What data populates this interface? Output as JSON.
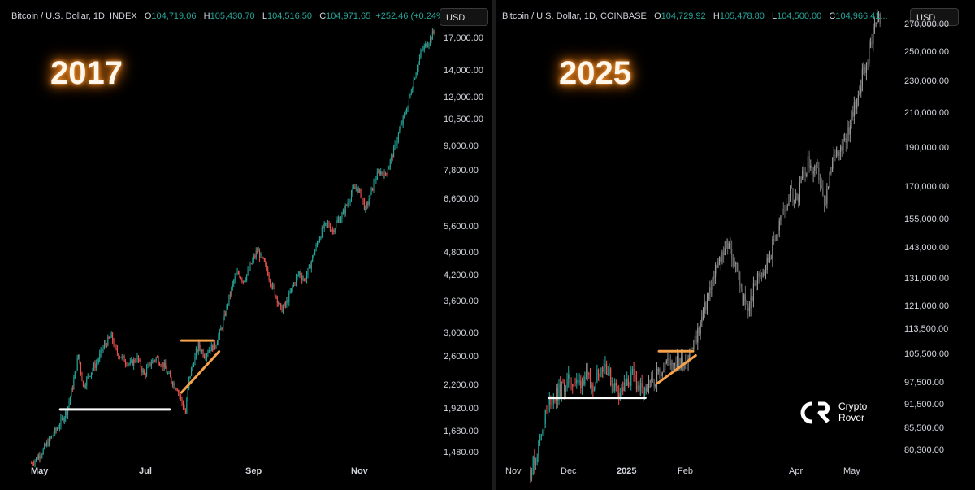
{
  "chart_data": [
    {
      "type": "candlestick",
      "title": "2017",
      "legend": {
        "symbol": "Bitcoin / U.S. Dollar, 1D, INDEX",
        "open": "104,719.06",
        "high": "105,430.70",
        "low": "104,516.50",
        "close": "104,971.65",
        "change": "+252.46 (+0.24%)..."
      },
      "currency_button": "USD",
      "y_scale": "log",
      "ylim": [
        1400,
        18500
      ],
      "y_ticks": [
        "17,000.00",
        "14,000.00",
        "12,000.00",
        "10,500.00",
        "9,000.00",
        "7,800.00",
        "6,600.00",
        "5,600.00",
        "4,800.00",
        "4,200.00",
        "3,600.00",
        "3,000.00",
        "2,600.00",
        "2,200.00",
        "1,920.00",
        "1,680.00",
        "1,480.00"
      ],
      "x_ticks": [
        "May",
        "Jul",
        "Sep",
        "Nov"
      ],
      "x_tick_bold": [
        true,
        true,
        true,
        true
      ],
      "path_points": [
        [
          0,
          1400
        ],
        [
          8,
          1480
        ],
        [
          15,
          1600
        ],
        [
          22,
          1720
        ],
        [
          30,
          1900
        ],
        [
          35,
          2200
        ],
        [
          40,
          2650
        ],
        [
          44,
          2200
        ],
        [
          50,
          2380
        ],
        [
          56,
          2550
        ],
        [
          62,
          2800
        ],
        [
          68,
          2950
        ],
        [
          72,
          2700
        ],
        [
          78,
          2580
        ],
        [
          84,
          2500
        ],
        [
          90,
          2600
        ],
        [
          96,
          2350
        ],
        [
          100,
          2500
        ],
        [
          106,
          2600
        ],
        [
          112,
          2500
        ],
        [
          118,
          2300
        ],
        [
          124,
          2180
        ],
        [
          128,
          2000
        ],
        [
          131,
          1880
        ],
        [
          134,
          2300
        ],
        [
          138,
          2550
        ],
        [
          142,
          2800
        ],
        [
          147,
          2650
        ],
        [
          152,
          2750
        ],
        [
          156,
          2800
        ],
        [
          160,
          3000
        ],
        [
          164,
          3300
        ],
        [
          168,
          3700
        ],
        [
          172,
          4100
        ],
        [
          176,
          4300
        ],
        [
          180,
          4100
        ],
        [
          184,
          4300
        ],
        [
          188,
          4600
        ],
        [
          192,
          4900
        ],
        [
          196,
          4650
        ],
        [
          200,
          4400
        ],
        [
          204,
          4000
        ],
        [
          208,
          3750
        ],
        [
          212,
          3450
        ],
        [
          216,
          3550
        ],
        [
          220,
          3800
        ],
        [
          224,
          4100
        ],
        [
          228,
          4300
        ],
        [
          232,
          4100
        ],
        [
          236,
          4400
        ],
        [
          240,
          4800
        ],
        [
          244,
          5200
        ],
        [
          248,
          5600
        ],
        [
          252,
          5700
        ],
        [
          256,
          5500
        ],
        [
          260,
          5800
        ],
        [
          264,
          6000
        ],
        [
          268,
          6400
        ],
        [
          272,
          6850
        ],
        [
          276,
          7100
        ],
        [
          280,
          6800
        ],
        [
          284,
          6200
        ],
        [
          288,
          6800
        ],
        [
          292,
          7400
        ],
        [
          296,
          7800
        ],
        [
          300,
          7600
        ],
        [
          304,
          8100
        ],
        [
          308,
          8800
        ],
        [
          312,
          9700
        ],
        [
          316,
          10600
        ],
        [
          320,
          11500
        ],
        [
          324,
          13000
        ],
        [
          328,
          14500
        ],
        [
          332,
          15800
        ],
        [
          336,
          16500
        ],
        [
          340,
          17200
        ],
        [
          344,
          18200
        ]
      ],
      "levels": [
        {
          "kind": "support",
          "price": 1920,
          "from": 25,
          "to": 118,
          "color": "#ffffff"
        },
        {
          "kind": "resistance",
          "price": 2880,
          "from": 128,
          "to": 155,
          "color": "#f5a34a"
        },
        {
          "kind": "trendline",
          "from": [
            128,
            2120
          ],
          "to": [
            160,
            2700
          ],
          "color": "#f5a34a"
        }
      ]
    },
    {
      "type": "candlestick",
      "title": "2025",
      "legend": {
        "symbol": "Bitcoin / U.S. Dollar, 1D, COINBASE",
        "open": "104,729.92",
        "high": "105,478.80",
        "low": "104,500.00",
        "close": "104,966.41..."
      },
      "currency_button": "USD",
      "y_scale": "log",
      "ylim": [
        78000,
        285000
      ],
      "y_ticks": [
        "270,000.00",
        "250,000.00",
        "230,000.00",
        "210,000.00",
        "190,000.00",
        "170,000.00",
        "155,000.00",
        "143,000.00",
        "131,000.00",
        "121,000.00",
        "113,500.00",
        "105,500.00",
        "97,500.00",
        "91,500.00",
        "85,500.00",
        "80,300.00"
      ],
      "x_ticks": [
        "Nov",
        "Dec",
        "2025",
        "Feb",
        "Apr",
        "May"
      ],
      "x_tick_bold": [
        false,
        false,
        true,
        false,
        false,
        false
      ],
      "actual_until": 84,
      "path_points": [
        [
          0,
          76000
        ],
        [
          5,
          80000
        ],
        [
          10,
          88000
        ],
        [
          15,
          93000
        ],
        [
          20,
          94500
        ],
        [
          25,
          97000
        ],
        [
          30,
          98500
        ],
        [
          35,
          97000
        ],
        [
          40,
          99500
        ],
        [
          45,
          96500
        ],
        [
          50,
          101000
        ],
        [
          55,
          103000
        ],
        [
          60,
          97500
        ],
        [
          65,
          95000
        ],
        [
          70,
          96500
        ],
        [
          75,
          99500
        ],
        [
          80,
          96000
        ],
        [
          84,
          94000
        ],
        [
          90,
          98000
        ],
        [
          95,
          101000
        ],
        [
          100,
          103500
        ],
        [
          105,
          104000
        ],
        [
          110,
          103000
        ],
        [
          115,
          105000
        ],
        [
          120,
          108000
        ],
        [
          124,
          114000
        ],
        [
          128,
          120000
        ],
        [
          132,
          127000
        ],
        [
          136,
          134000
        ],
        [
          140,
          139000
        ],
        [
          144,
          146000
        ],
        [
          148,
          140000
        ],
        [
          152,
          135000
        ],
        [
          156,
          124000
        ],
        [
          160,
          120000
        ],
        [
          164,
          127000
        ],
        [
          168,
          133000
        ],
        [
          172,
          135000
        ],
        [
          176,
          140000
        ],
        [
          180,
          148000
        ],
        [
          184,
          156000
        ],
        [
          188,
          163000
        ],
        [
          192,
          168000
        ],
        [
          196,
          164000
        ],
        [
          200,
          175000
        ],
        [
          204,
          182000
        ],
        [
          208,
          178000
        ],
        [
          212,
          176000
        ],
        [
          216,
          160000
        ],
        [
          220,
          174000
        ],
        [
          224,
          188000
        ],
        [
          228,
          192000
        ],
        [
          232,
          197000
        ],
        [
          236,
          207000
        ],
        [
          240,
          218000
        ],
        [
          244,
          235000
        ],
        [
          248,
          245000
        ],
        [
          252,
          268000
        ],
        [
          256,
          282000
        ],
        [
          258,
          266000
        ]
      ],
      "levels": [
        {
          "kind": "support",
          "price": 93500,
          "from": 14,
          "to": 85,
          "color": "#ffffff"
        },
        {
          "kind": "resistance",
          "price": 106800,
          "from": 95,
          "to": 120,
          "color": "#f5a34a"
        },
        {
          "kind": "trendline",
          "from": [
            94,
            97500
          ],
          "to": [
            122,
            105500
          ],
          "color": "#f5a34a"
        }
      ]
    }
  ],
  "watermark": {
    "line1": "Crypto",
    "line2": "Rover"
  }
}
